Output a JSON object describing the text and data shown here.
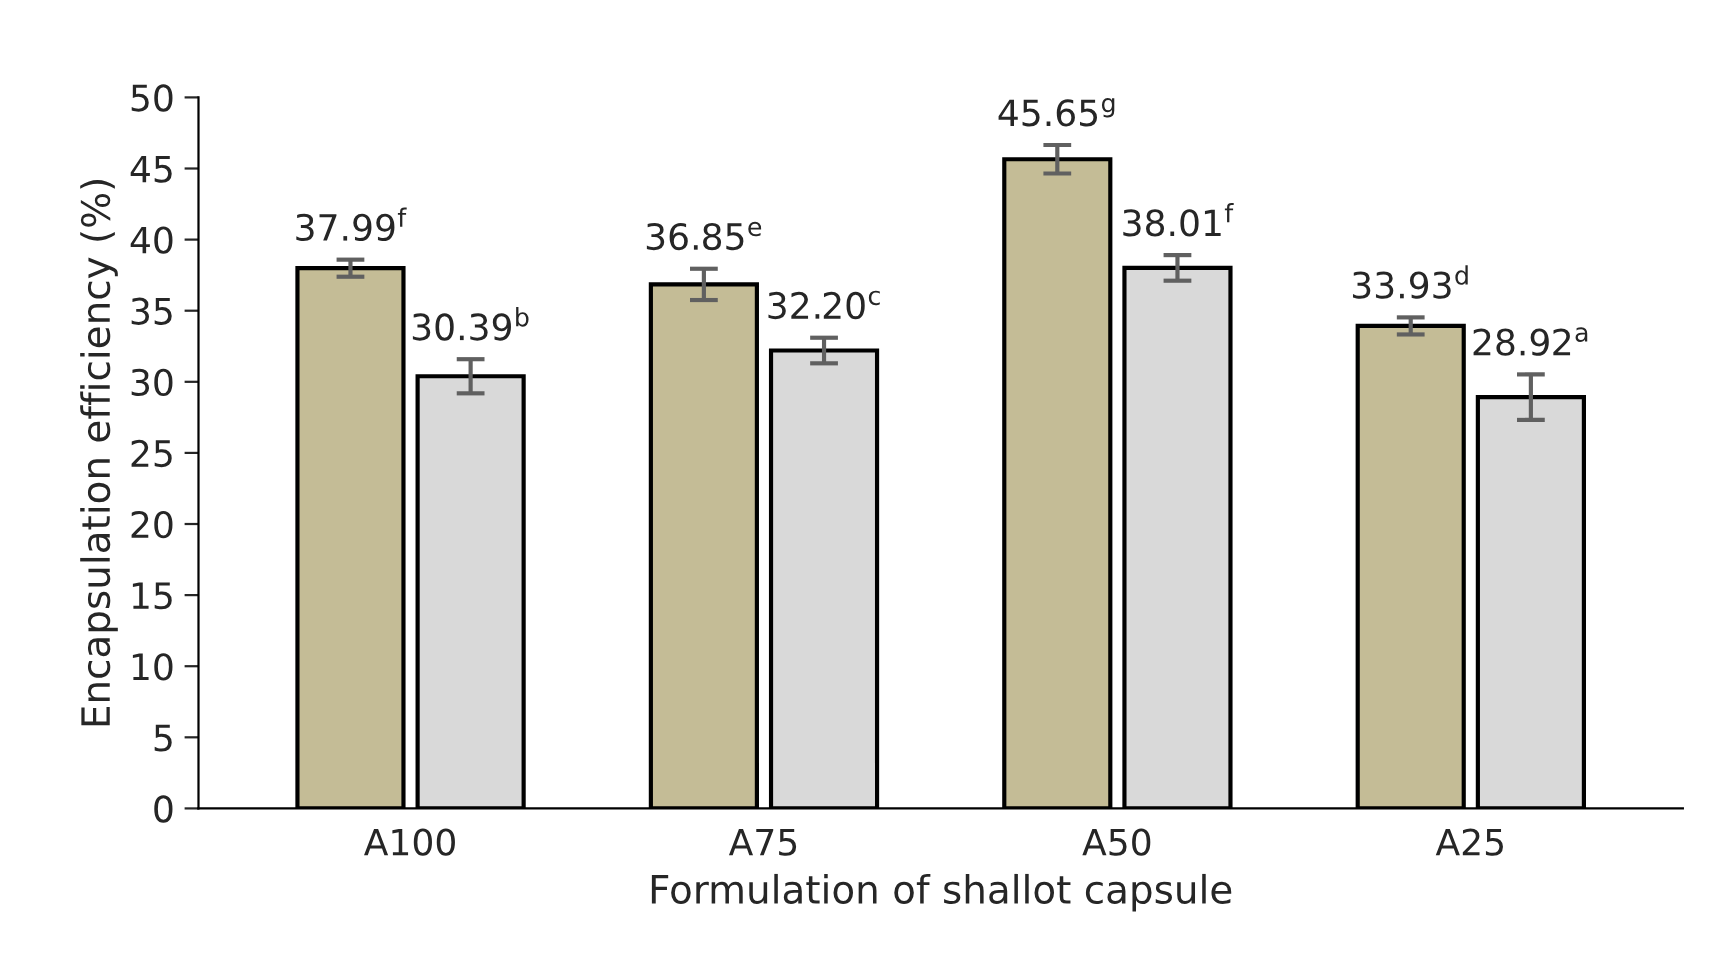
{
  "chart_data": {
    "type": "bar",
    "xlabel": "Formulation of shallot capsule",
    "ylabel": "Encapsulation efficiency (%)",
    "categories": [
      "A100",
      "A75",
      "A50",
      "A25"
    ],
    "series": [
      {
        "color": "#c4bc96",
        "values": [
          37.99,
          36.85,
          45.65,
          33.93
        ],
        "errors": [
          0.6,
          1.1,
          1.0,
          0.6
        ],
        "value_labels": [
          "37.99$^{f}$",
          "36.85$^{e}$",
          "45.65$^{g}$",
          "33.93$^{d}$"
        ]
      },
      {
        "color": "#d9d9d9",
        "values": [
          30.39,
          32.2,
          38.01,
          28.92
        ],
        "errors": [
          1.2,
          0.9,
          0.9,
          1.6
        ],
        "value_labels": [
          "30.39$^{b}$",
          "32.20$^{c}$",
          "38.01$^{f}$",
          "28.92$^{a}$"
        ]
      }
    ],
    "ylim": [
      0,
      50
    ],
    "yticks": [
      0,
      5,
      10,
      15,
      20,
      25,
      30,
      35,
      40,
      45,
      50
    ],
    "grid": false
  }
}
